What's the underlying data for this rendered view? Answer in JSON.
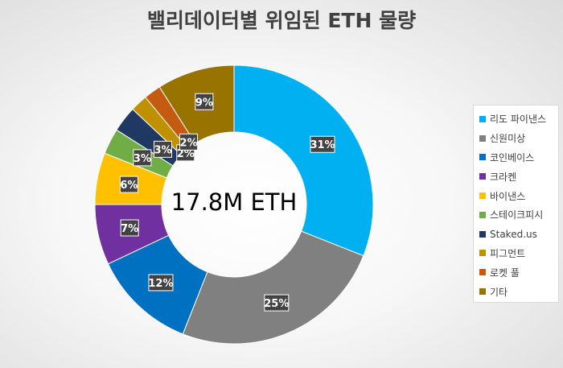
{
  "chart_data": {
    "type": "pie",
    "style": "donut",
    "title": "밸리데이터별 위임된 ETH 물량",
    "center_label": "17.8M ETH",
    "categories": [
      "리도 파이낸스",
      "신원미상",
      "코인베이스",
      "크라켄",
      "바이낸스",
      "스테이크피시",
      "Staked.us",
      "피그먼트",
      "로켓 풀",
      "기타"
    ],
    "values": [
      31,
      25,
      12,
      7,
      6,
      3,
      3,
      2,
      2,
      9
    ],
    "value_labels": [
      "31%",
      "25%",
      "12%",
      "7%",
      "6%",
      "3%",
      "3%",
      "2%",
      "2%",
      "9%"
    ],
    "colors": [
      "#00b0f0",
      "#808080",
      "#0070c0",
      "#7030a0",
      "#ffc000",
      "#70ad47",
      "#203864",
      "#bf9000",
      "#c55a11",
      "#997300"
    ],
    "legend_position": "right"
  }
}
